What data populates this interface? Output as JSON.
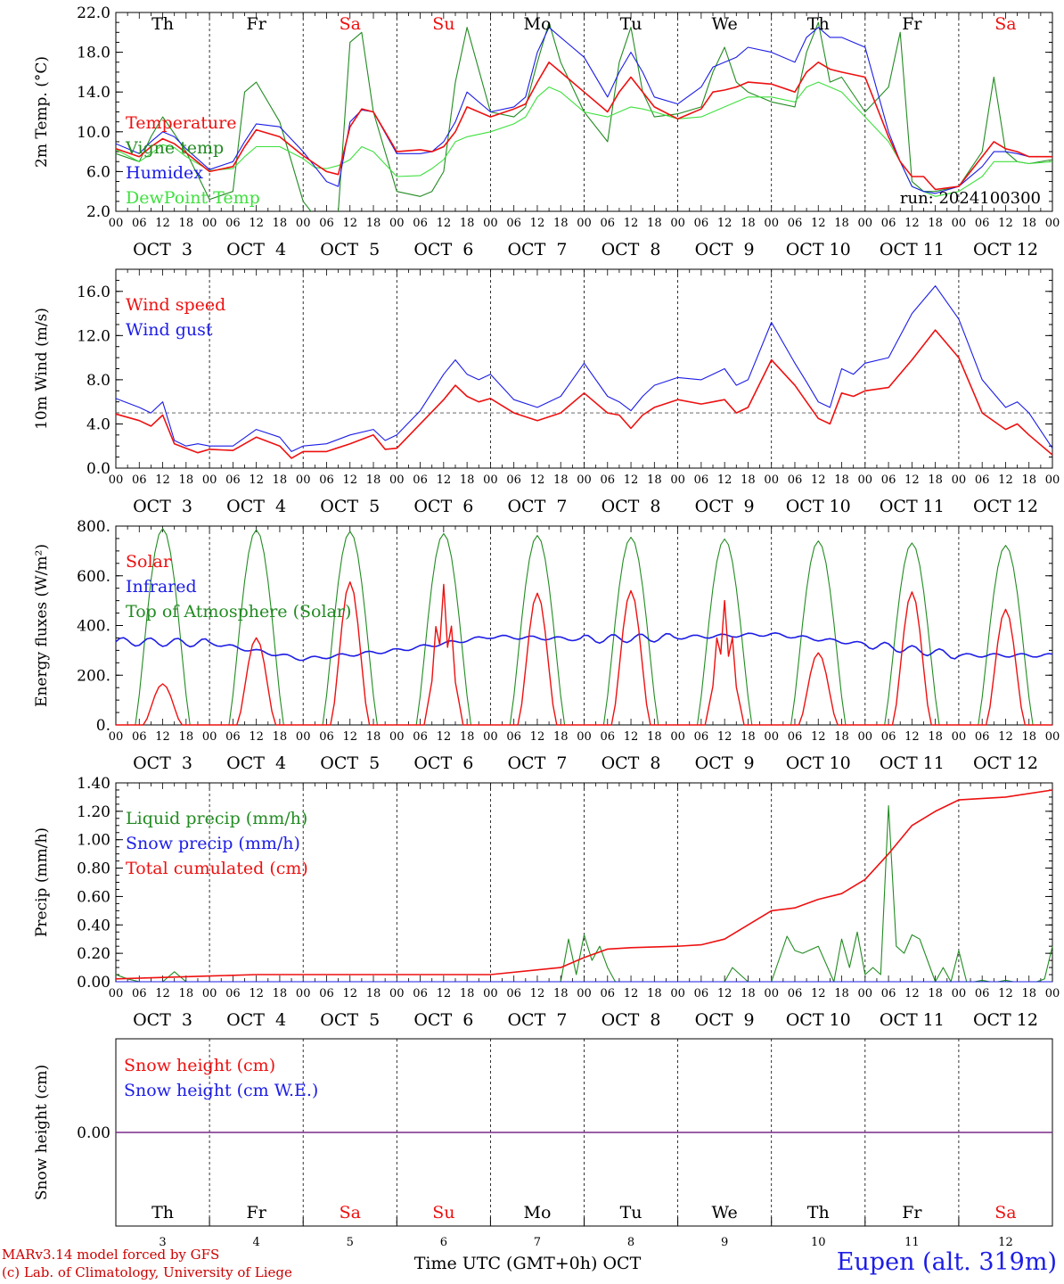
{
  "colors": {
    "red": "#ee1010",
    "blue": "#1c1ce6",
    "dark_green": "#228b22",
    "light_green": "#3ee03e",
    "purple": "#7a2a8a",
    "black": "#000000"
  },
  "footer": {
    "model_line": "MARv3.14 model forced by GFS",
    "copyright_line": "(c) Lab. of Climatology, University of Liege",
    "station": "Eupen (alt. 319m)"
  },
  "chart_data": [
    {
      "type": "line",
      "ylabel": "2m Temp. (°C)",
      "ylim": [
        2,
        22
      ],
      "y_ticks": [
        "2.0",
        "6.0",
        "10.0",
        "14.0",
        "18.0",
        "22.0"
      ],
      "day_names": [
        "Th",
        "Fr",
        "Sa",
        "Su",
        "Mo",
        "Tu",
        "We",
        "Th",
        "Fr",
        "Sa"
      ],
      "weekend_days": [
        2,
        3,
        9
      ],
      "date_labels": [
        "OCT  3",
        "OCT  4",
        "OCT  5",
        "OCT  6",
        "OCT  7",
        "OCT  8",
        "OCT  9",
        "OCT 10",
        "OCT 11",
        "OCT 12"
      ],
      "hour_ticks": [
        "00",
        "06",
        "12",
        "18"
      ],
      "annotation": "run: 2024100300",
      "x_hours": [
        0,
        6,
        9,
        12,
        15,
        18,
        24,
        30,
        33,
        36,
        42,
        48,
        51,
        54,
        57,
        60,
        63,
        66,
        72,
        78,
        81,
        84,
        87,
        90,
        96,
        102,
        105,
        108,
        111,
        114,
        120,
        126,
        129,
        132,
        135,
        138,
        144,
        150,
        153,
        156,
        159,
        162,
        168,
        174,
        177,
        180,
        183,
        186,
        192,
        198,
        201,
        204,
        207,
        210,
        216,
        222,
        225,
        228,
        231,
        234,
        240
      ],
      "series": [
        {
          "name": "Temperature",
          "color": "#ee1010",
          "width": 1.6,
          "values": [
            8.3,
            7.5,
            8.5,
            9.3,
            8.8,
            7.9,
            6.0,
            6.5,
            8.5,
            10.2,
            9.5,
            7.6,
            6.8,
            6.0,
            5.7,
            10.5,
            12.3,
            12.0,
            8.0,
            8.2,
            8.0,
            8.5,
            10.0,
            12.5,
            11.5,
            12.3,
            12.8,
            15.0,
            17.0,
            16.0,
            14.0,
            12.0,
            14.0,
            15.5,
            14.0,
            12.5,
            11.3,
            12.3,
            14.0,
            14.2,
            14.5,
            15.0,
            14.8,
            14.0,
            16.0,
            17.0,
            16.3,
            16.0,
            15.5,
            9.5,
            7.0,
            5.5,
            5.5,
            4.2,
            4.5,
            7.5,
            9.0,
            8.3,
            8.0,
            7.5,
            7.5
          ]
        },
        {
          "name": "Vigne temp",
          "color": "#228b22",
          "width": 1.1,
          "values": [
            7.8,
            7.0,
            9.5,
            11.5,
            9.8,
            8.0,
            3.2,
            4.0,
            14.0,
            15.0,
            11.0,
            3.0,
            1.5,
            0.5,
            2.0,
            19.0,
            20.0,
            12.0,
            4.0,
            3.5,
            4.0,
            6.0,
            15.0,
            20.5,
            12.0,
            11.5,
            12.5,
            17.0,
            21.0,
            17.0,
            12.0,
            9.0,
            17.0,
            20.5,
            14.0,
            11.5,
            11.8,
            12.5,
            16.0,
            18.5,
            15.0,
            14.0,
            13.0,
            12.5,
            18.0,
            21.0,
            15.0,
            15.5,
            12.0,
            14.5,
            20.0,
            5.0,
            4.0,
            4.0,
            4.5,
            8.0,
            15.5,
            8.0,
            7.0,
            6.8,
            7.2
          ]
        },
        {
          "name": "Humidex",
          "color": "#1c1ce6",
          "width": 1.1,
          "values": [
            8.8,
            7.8,
            9.0,
            10.0,
            9.5,
            8.3,
            6.2,
            7.0,
            9.0,
            10.8,
            10.5,
            8.0,
            6.5,
            5.0,
            4.5,
            11.0,
            12.2,
            12.0,
            7.8,
            7.8,
            8.0,
            9.0,
            11.0,
            14.0,
            12.0,
            12.5,
            13.5,
            18.0,
            20.5,
            19.5,
            17.5,
            13.5,
            16.0,
            18.0,
            16.0,
            13.5,
            12.8,
            14.5,
            16.5,
            17.0,
            17.5,
            18.5,
            18.0,
            17.0,
            19.5,
            20.5,
            19.5,
            19.5,
            18.5,
            10.0,
            7.0,
            4.5,
            4.0,
            3.8,
            4.5,
            6.5,
            8.0,
            8.0,
            7.8,
            7.5,
            7.5
          ]
        },
        {
          "name": "DewPoint Temp",
          "color": "#3ee03e",
          "width": 1.1,
          "values": [
            8.2,
            7.0,
            7.8,
            8.7,
            8.4,
            7.5,
            6.1,
            6.3,
            7.5,
            8.5,
            8.5,
            7.3,
            6.4,
            6.3,
            6.6,
            7.2,
            8.5,
            8.0,
            5.5,
            5.6,
            6.3,
            7.2,
            9.0,
            9.5,
            10.0,
            10.8,
            11.5,
            13.5,
            14.5,
            14.0,
            12.0,
            11.5,
            12.0,
            12.5,
            12.3,
            12.0,
            11.3,
            11.5,
            12.0,
            12.5,
            13.0,
            13.5,
            13.5,
            13.0,
            14.5,
            15.0,
            14.5,
            14.0,
            11.5,
            9.0,
            7.0,
            4.5,
            4.0,
            3.5,
            4.0,
            5.5,
            7.0,
            7.0,
            7.0,
            6.8,
            7.0
          ]
        }
      ]
    },
    {
      "type": "line",
      "ylabel": "10m Wind (m/s)",
      "ylim": [
        0,
        18
      ],
      "y_ticks": [
        "0.0",
        "4.0",
        "8.0",
        "12.0",
        "16.0"
      ],
      "reference_line": 5,
      "date_labels": [
        "OCT  3",
        "OCT  4",
        "OCT  5",
        "OCT  6",
        "OCT  7",
        "OCT  8",
        "OCT  9",
        "OCT 10",
        "OCT 11",
        "OCT 12"
      ],
      "hour_ticks": [
        "00",
        "06",
        "12",
        "18"
      ],
      "x_hours": [
        0,
        6,
        9,
        12,
        15,
        18,
        21,
        24,
        30,
        36,
        42,
        45,
        48,
        54,
        60,
        66,
        69,
        72,
        78,
        84,
        87,
        90,
        93,
        96,
        102,
        108,
        114,
        120,
        126,
        129,
        132,
        135,
        138,
        144,
        150,
        153,
        156,
        159,
        162,
        168,
        174,
        177,
        180,
        183,
        186,
        189,
        192,
        198,
        204,
        210,
        216,
        222,
        228,
        231,
        234,
        240
      ],
      "series": [
        {
          "name": "Wind speed",
          "color": "#ee1010",
          "width": 1.6,
          "values": [
            4.9,
            4.3,
            3.8,
            4.8,
            2.2,
            1.8,
            1.4,
            1.7,
            1.6,
            2.8,
            2.0,
            0.9,
            1.5,
            1.5,
            2.2,
            3.0,
            1.7,
            1.8,
            4.0,
            6.2,
            7.5,
            6.5,
            6.0,
            6.3,
            5.0,
            4.3,
            5.0,
            6.8,
            5.0,
            4.8,
            3.6,
            4.8,
            5.5,
            6.2,
            5.8,
            6.0,
            6.2,
            5.0,
            5.5,
            9.8,
            7.5,
            6.0,
            4.5,
            4.0,
            6.8,
            6.5,
            7.0,
            7.3,
            9.8,
            12.5,
            10.0,
            5.0,
            3.5,
            4.0,
            3.0,
            1.2
          ]
        },
        {
          "name": "Wind gust",
          "color": "#1c1ce6",
          "width": 1.1,
          "values": [
            6.3,
            5.5,
            5.0,
            6.0,
            2.5,
            2.0,
            2.2,
            2.0,
            2.0,
            3.5,
            2.8,
            1.5,
            2.0,
            2.2,
            3.0,
            3.5,
            2.5,
            3.0,
            5.2,
            8.5,
            9.8,
            8.5,
            8.0,
            8.5,
            6.2,
            5.5,
            6.5,
            9.5,
            6.5,
            6.0,
            5.2,
            6.5,
            7.5,
            8.2,
            8.0,
            8.5,
            9.0,
            7.5,
            8.0,
            13.2,
            9.5,
            7.8,
            6.0,
            5.5,
            9.0,
            8.5,
            9.5,
            10.0,
            14.0,
            16.5,
            13.5,
            8.0,
            5.5,
            6.0,
            5.0,
            1.8
          ]
        }
      ]
    },
    {
      "type": "line",
      "ylabel": "Energy fluxes (W/m²)",
      "ylim": [
        0,
        800
      ],
      "y_ticks": [
        "0.",
        "200.",
        "400.",
        "600.",
        "800."
      ],
      "date_labels": [
        "OCT  3",
        "OCT  4",
        "OCT  5",
        "OCT  6",
        "OCT  7",
        "OCT  8",
        "OCT  9",
        "OCT 10",
        "OCT 11",
        "OCT 12"
      ],
      "hour_ticks": [
        "00",
        "06",
        "12",
        "18"
      ],
      "toa_daily_peaks": [
        790,
        785,
        778,
        770,
        762,
        755,
        748,
        740,
        732,
        722
      ],
      "solar_daily_peaks": [
        165,
        350,
        575,
        565,
        530,
        540,
        500,
        290,
        535,
        465
      ],
      "infrared_daily_base": [
        335,
        330,
        265,
        300,
        355,
        345,
        352,
        365,
        325,
        280
      ],
      "series_names": [
        "Solar",
        "Infrared",
        "Top of Atmosphere (Solar)"
      ],
      "series_colors": [
        "#ee1010",
        "#1c1ce6",
        "#228b22"
      ]
    },
    {
      "type": "line",
      "ylabel": "Precip (mm/h)",
      "ylim": [
        0,
        1.4
      ],
      "y_ticks": [
        "0.00",
        "0.20",
        "0.40",
        "0.60",
        "0.80",
        "1.00",
        "1.20",
        "1.40"
      ],
      "date_labels": [
        "OCT  3",
        "OCT  4",
        "OCT  5",
        "OCT  6",
        "OCT  7",
        "OCT  8",
        "OCT  9",
        "OCT 10",
        "OCT 11",
        "OCT 12"
      ],
      "hour_ticks": [
        "00",
        "06",
        "12",
        "18"
      ],
      "series": [
        {
          "name": "Liquid precip (mm/h)",
          "color": "#228b22",
          "width": 1.1,
          "x": [
            0,
            3,
            6,
            12,
            15,
            18,
            24,
            48,
            72,
            84,
            96,
            114,
            116,
            118,
            120,
            122,
            124,
            126,
            128,
            132,
            144,
            156,
            158,
            162,
            168,
            172,
            174,
            176,
            180,
            184,
            186,
            188,
            190,
            192,
            194,
            196,
            198,
            200,
            202,
            204,
            206,
            210,
            212,
            214,
            216,
            218,
            220,
            222,
            224,
            226,
            228,
            230,
            232,
            234,
            236,
            238,
            240
          ],
          "values": [
            0.05,
            0.02,
            0.0,
            0.0,
            0.07,
            0.0,
            0.0,
            0.0,
            0.0,
            0.0,
            0.0,
            0.0,
            0.3,
            0.05,
            0.33,
            0.15,
            0.25,
            0.1,
            0.0,
            0.0,
            0.0,
            0.0,
            0.1,
            0.0,
            0.0,
            0.32,
            0.22,
            0.2,
            0.25,
            0.0,
            0.3,
            0.1,
            0.35,
            0.05,
            0.1,
            0.05,
            1.24,
            0.25,
            0.2,
            0.33,
            0.3,
            0.0,
            0.1,
            0.0,
            0.22,
            0.0,
            0.0,
            0.01,
            0.0,
            0.0,
            0.01,
            0.0,
            0.0,
            0.0,
            0.0,
            0.02,
            0.25
          ]
        },
        {
          "name": "Snow precip (mm/h)",
          "color": "#1c1ce6",
          "width": 1.1,
          "x": [
            0,
            240
          ],
          "values": [
            0,
            0
          ]
        },
        {
          "name": "Total cumulated (cm)",
          "color": "#ee1010",
          "width": 1.6,
          "x": [
            0,
            24,
            36,
            48,
            72,
            96,
            114,
            120,
            126,
            132,
            144,
            150,
            156,
            162,
            168,
            174,
            180,
            186,
            192,
            198,
            204,
            210,
            216,
            228,
            240
          ],
          "values": [
            0.02,
            0.04,
            0.05,
            0.05,
            0.05,
            0.05,
            0.1,
            0.17,
            0.23,
            0.24,
            0.25,
            0.26,
            0.3,
            0.4,
            0.5,
            0.52,
            0.58,
            0.62,
            0.72,
            0.9,
            1.1,
            1.2,
            1.28,
            1.3,
            1.35
          ]
        }
      ]
    },
    {
      "type": "line",
      "ylabel": "Snow height (cm)",
      "y_ticks": [
        "0.00"
      ],
      "day_names": [
        "Th",
        "Fr",
        "Sa",
        "Su",
        "Mo",
        "Tu",
        "We",
        "Th",
        "Fr",
        "Sa"
      ],
      "day_numbers": [
        "3",
        "4",
        "5",
        "6",
        "7",
        "8",
        "9",
        "10",
        "11",
        "12"
      ],
      "xlabel": "Time UTC (GMT+0h) OCT",
      "series": [
        {
          "name": "Snow height (cm)",
          "color": "#ee1010",
          "x": [
            0,
            240
          ],
          "values": [
            0,
            0
          ]
        },
        {
          "name": "Snow height (cm W.E.)",
          "color": "#1c1ce6",
          "x": [
            0,
            240
          ],
          "values": [
            0,
            0
          ]
        }
      ]
    }
  ]
}
